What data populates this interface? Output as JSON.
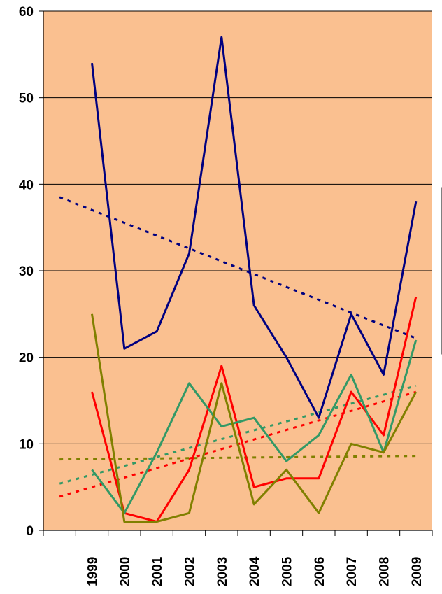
{
  "chart_data": {
    "type": "line",
    "title": "",
    "xlabel": "",
    "ylabel": "",
    "categories": [
      "1999",
      "2000",
      "2001",
      "2002",
      "2003",
      "2004",
      "2005",
      "2006",
      "2007",
      "2008",
      "2009"
    ],
    "ylim": [
      0,
      60
    ],
    "yticks": [
      0,
      10,
      20,
      30,
      40,
      50,
      60
    ],
    "grid": true,
    "legend": "none",
    "plot_background": "#FAC090",
    "series": [
      {
        "color": "#000080",
        "values": [
          54,
          21,
          23,
          32,
          57,
          26,
          20,
          13,
          25,
          18,
          38
        ],
        "trend": {
          "start": 38.5,
          "end": 22.2
        }
      },
      {
        "color": "#FF0000",
        "values": [
          16,
          2,
          1,
          7,
          19,
          5,
          6,
          6,
          16,
          11,
          27
        ],
        "trend": {
          "start": 3.9,
          "end": 16.0
        }
      },
      {
        "color": "#339966",
        "values": [
          7,
          2,
          9,
          17,
          12,
          13,
          8,
          11,
          18,
          9,
          22
        ],
        "trend": {
          "start": 5.4,
          "end": 16.7
        }
      },
      {
        "color": "#808000",
        "values": [
          25,
          1,
          1,
          2,
          17,
          3,
          7,
          2,
          10,
          9,
          16
        ],
        "trend": {
          "start": 8.2,
          "end": 8.6
        }
      }
    ]
  }
}
